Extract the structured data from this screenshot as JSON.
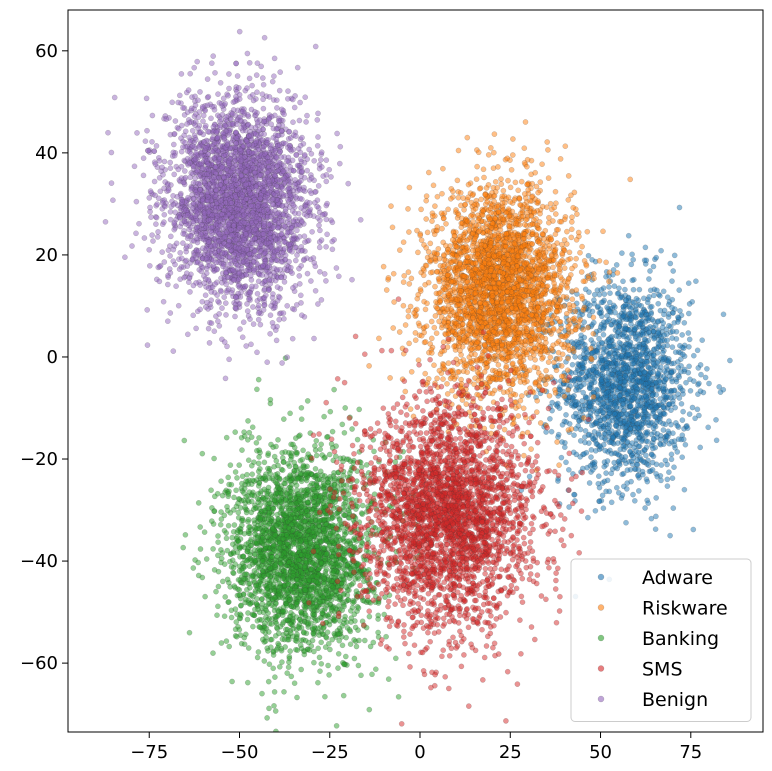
{
  "chart_data": {
    "type": "scatter",
    "title": "",
    "xlabel": "",
    "ylabel": "",
    "xlim": [
      -97.5,
      95
    ],
    "ylim": [
      -73.5,
      68
    ],
    "xticks": [
      -75,
      -50,
      -25,
      0,
      25,
      50,
      75
    ],
    "yticks": [
      -60,
      -40,
      -20,
      0,
      20,
      40,
      60
    ],
    "grid": false,
    "legend_position": "bottom-right",
    "series": [
      {
        "name": "Adware",
        "color": "#1f77b4",
        "n": 1800,
        "center": [
          57,
          -5
        ],
        "spread": [
          9,
          10
        ]
      },
      {
        "name": "Riskware",
        "color": "#ff7f0e",
        "n": 3000,
        "center": [
          22,
          13
        ],
        "spread": [
          10,
          10
        ]
      },
      {
        "name": "Banking",
        "color": "#2ca02c",
        "n": 2800,
        "center": [
          -33,
          -38
        ],
        "spread": [
          10,
          10
        ]
      },
      {
        "name": "SMS",
        "color": "#d62728",
        "n": 3000,
        "center": [
          8,
          -31
        ],
        "spread": [
          12,
          11
        ]
      },
      {
        "name": "Benign",
        "color": "#9467bd",
        "n": 3300,
        "center": [
          -50,
          30
        ],
        "spread": [
          10,
          10
        ]
      }
    ]
  }
}
